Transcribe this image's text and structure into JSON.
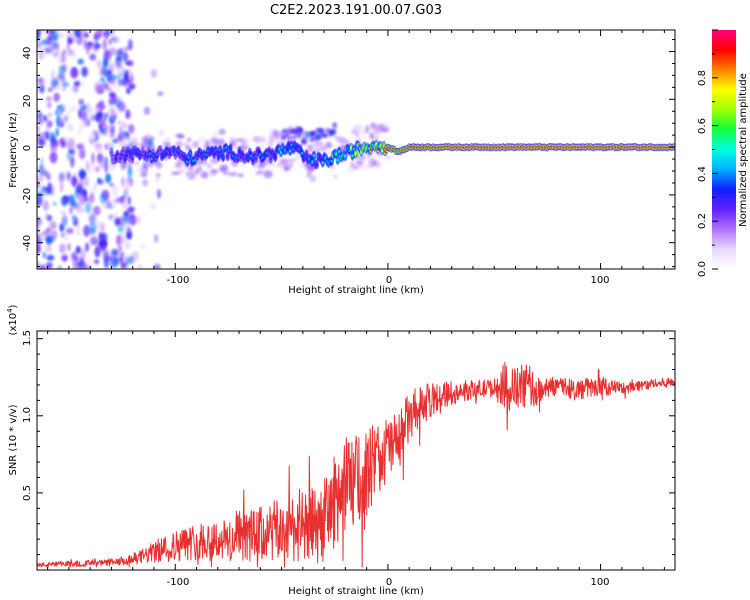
{
  "title": "C2E2.2023.191.00.07.G03",
  "colors": {
    "snr_line": "#e83030",
    "frame": "#000000",
    "colormap": [
      "#ffffff",
      "#e8d8ff",
      "#b070ff",
      "#6020ff",
      "#1020ff",
      "#00b0ff",
      "#00ffe0",
      "#10ff40",
      "#a0ff00",
      "#ffff00",
      "#ff8000",
      "#ff0000",
      "#ff0080"
    ]
  },
  "chart_data": [
    {
      "id": "spectrogram",
      "type": "heatmap",
      "xlabel": "Height of straight line (km)",
      "ylabel": "Frequency (Hz)",
      "xlim": [
        -165,
        135
      ],
      "ylim": [
        -51,
        49
      ],
      "xticks": [
        "-100",
        "0",
        "100"
      ],
      "yticks": [
        "-40",
        "-20",
        "0",
        "20",
        "40"
      ],
      "colorbar": {
        "label": "Normalized spectral amplitude",
        "ticks": [
          "0.0",
          "0.2",
          "0.4",
          "0.6",
          "0.8"
        ],
        "range": [
          0,
          1
        ]
      },
      "ridge": {
        "x": [
          -165,
          -140,
          -125,
          -110,
          -100,
          -95,
          -85,
          -75,
          -65,
          -55,
          -45,
          -38,
          -30,
          -25,
          -20,
          -15,
          -10,
          -5,
          0,
          5,
          10,
          20,
          40,
          60,
          80,
          100,
          120,
          135
        ],
        "freq": [
          -4,
          -4,
          -3,
          -3,
          -2,
          -5,
          -3,
          -2,
          -4,
          -3,
          0,
          -5,
          -6,
          -4,
          -3,
          -1,
          0,
          1,
          0,
          -2,
          0,
          0,
          0,
          0,
          0,
          0,
          0,
          0
        ],
        "amplitude": [
          0.2,
          0.2,
          0.3,
          0.4,
          0.35,
          0.45,
          0.4,
          0.4,
          0.4,
          0.45,
          0.5,
          0.45,
          0.5,
          0.6,
          0.65,
          0.7,
          0.8,
          0.85,
          0.9,
          0.85,
          0.9,
          0.95,
          0.95,
          0.95,
          0.95,
          0.95,
          0.95,
          0.95
        ]
      },
      "noise_region_x": [
        -165,
        -120
      ]
    },
    {
      "id": "snr",
      "type": "line",
      "xlabel": "Height of straight line (km)",
      "ylabel": "SNR (10 * v/v)",
      "y_multiplier": "(x10",
      "y_multiplier_exp": "4",
      "y_multiplier_close": ")",
      "xlim": [
        -165,
        135
      ],
      "ylim": [
        0,
        15500
      ],
      "xticks": [
        "-100",
        "0",
        "100"
      ],
      "yticks": [
        "0.5",
        "1.0",
        "1.5"
      ],
      "series": [
        {
          "x": [
            -165,
            -150,
            -135,
            -125,
            -115,
            -105,
            -95,
            -85,
            -75,
            -65,
            -55,
            -45,
            -38,
            -30,
            -25,
            -20,
            -15,
            -10,
            -5,
            0,
            5,
            10,
            15,
            20,
            25,
            30,
            40,
            50,
            55,
            60,
            65,
            70,
            75,
            80,
            90,
            100,
            110,
            120,
            135
          ],
          "y": [
            300,
            400,
            450,
            500,
            900,
            1400,
            1700,
            2000,
            1900,
            2200,
            2400,
            2800,
            2600,
            3200,
            4500,
            5500,
            5800,
            6300,
            7300,
            7800,
            8500,
            9800,
            10600,
            11000,
            11300,
            11500,
            11700,
            11800,
            12000,
            11700,
            12000,
            11600,
            11800,
            12000,
            11700,
            11900,
            11800,
            12000,
            12200
          ],
          "noise": [
            150,
            200,
            200,
            250,
            500,
            900,
            1100,
            1300,
            1400,
            1700,
            2000,
            2200,
            2500,
            2700,
            3000,
            3200,
            3000,
            2800,
            2500,
            2200,
            2000,
            1700,
            1400,
            1100,
            900,
            800,
            600,
            600,
            1500,
            1400,
            1600,
            900,
            600,
            700,
            700,
            600,
            400,
            350,
            300
          ]
        }
      ]
    }
  ]
}
